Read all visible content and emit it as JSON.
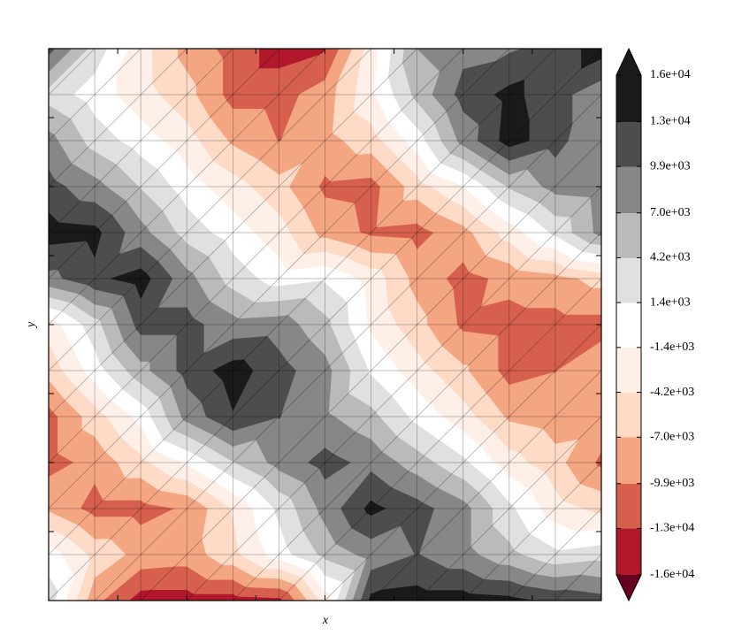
{
  "chart_data": {
    "type": "tricontour",
    "x_label": "x",
    "y_label": "y",
    "xlim": [
      0,
      8
    ],
    "ylim": [
      0,
      8
    ],
    "xticks": [
      1,
      2,
      3,
      4,
      5,
      6,
      7
    ],
    "yticks": [
      1,
      2,
      3,
      4,
      5,
      6,
      7
    ],
    "mesh": true,
    "z": [
      [
        11000,
        3000,
        -3000,
        -8000,
        -11000,
        -14000,
        -13000,
        -3000,
        7000,
        9000,
        9500,
        11000,
        14000
      ],
      [
        3000,
        0,
        -3000,
        -6000,
        -11000,
        -11000,
        -8500,
        -2000,
        5000,
        11000,
        13500,
        11000,
        8000
      ],
      [
        8000,
        3000,
        0,
        -3000,
        -7500,
        -10000,
        -8000,
        -5500,
        0,
        8000,
        14000,
        11000,
        7000
      ],
      [
        11000,
        8000,
        4000,
        0,
        -3000,
        -6000,
        -10500,
        -11000,
        -5500,
        -1500,
        4500,
        8000,
        8500
      ],
      [
        14000,
        13500,
        8000,
        3000,
        0,
        -3000,
        -8000,
        -10500,
        -11000,
        -8000,
        -3000,
        2000,
        8000
      ],
      [
        9000,
        12000,
        14000,
        8000,
        3000,
        0,
        1000,
        -2500,
        -8000,
        -11000,
        -9000,
        -8000,
        -6000
      ],
      [
        -3000,
        3000,
        11000,
        11000,
        8000,
        8500,
        5000,
        -2000,
        -6000,
        -10500,
        -11000,
        -11000,
        -11000
      ],
      [
        -6000,
        0,
        6000,
        11000,
        14000,
        11000,
        8000,
        1000,
        -3000,
        -6500,
        -11000,
        -10000,
        -8000
      ],
      [
        -11000,
        -5500,
        -500,
        8000,
        12500,
        10000,
        7500,
        5000,
        500,
        -3000,
        -7500,
        -8500,
        -8000
      ],
      [
        -11000,
        -9000,
        -5000,
        -1000,
        4000,
        8000,
        11000,
        9000,
        5500,
        2000,
        -3000,
        -6000,
        -10500
      ],
      [
        -7500,
        -11000,
        -11000,
        -9500,
        -4000,
        2000,
        8000,
        13500,
        11000,
        8000,
        2000,
        -3000,
        -5000
      ],
      [
        0,
        -5000,
        -8000,
        -8500,
        -5000,
        0,
        5000,
        8000,
        10000,
        8000,
        5000,
        2000,
        3000
      ],
      [
        3000,
        -9000,
        -14000,
        -14000,
        -14000,
        -13500,
        -3000,
        13500,
        14000,
        14000,
        13500,
        12000,
        11000
      ]
    ],
    "levels": [
      {
        "value": -15600,
        "label": "-1.6e+04"
      },
      {
        "value": -12700,
        "label": "-1.3e+04"
      },
      {
        "value": -9900,
        "label": "-9.9e+03"
      },
      {
        "value": -7000,
        "label": "-7.0e+03"
      },
      {
        "value": -4200,
        "label": "-4.2e+03"
      },
      {
        "value": -1400,
        "label": "-1.4e+03"
      },
      {
        "value": 1400,
        "label": "1.4e+03"
      },
      {
        "value": 4200,
        "label": "4.2e+03"
      },
      {
        "value": 7000,
        "label": "7.0e+03"
      },
      {
        "value": 9900,
        "label": "9.9e+03"
      },
      {
        "value": 12700,
        "label": "1.3e+04"
      },
      {
        "value": 15600,
        "label": "1.6e+04"
      }
    ],
    "colors": [
      "#b2182b",
      "#d6604d",
      "#f4a582",
      "#fddbc7",
      "#fef0e8",
      "#ffffff",
      "#e0e0e0",
      "#bababa",
      "#878787",
      "#4d4d4d",
      "#1a1a1a"
    ],
    "under_color": "#67001f",
    "over_color": "#1a1a1a"
  }
}
